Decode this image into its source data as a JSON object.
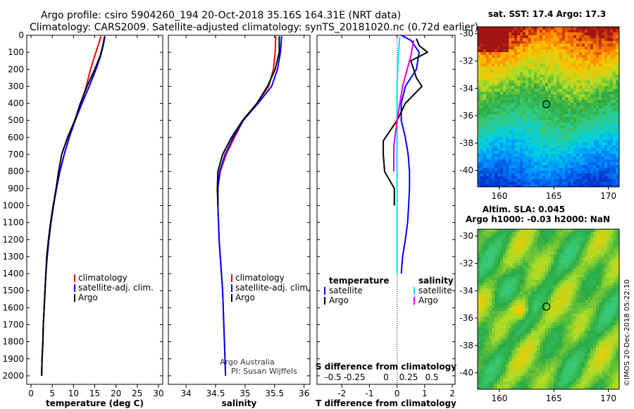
{
  "header": {
    "line1": "Argo profile: csiro 5904260_194 20-Oct-2018 35.16S 164.31E (NRT data)",
    "line2": "Climatology: CARS2009. Satellite-adjusted climatology: synTS_20181020.nc (0.72d earlier)"
  },
  "credits": {
    "org": "Argo Australia",
    "pi": "PI: Susan Wijffels",
    "stamp": "©IMOS 20-Dec-2018 05:22:10"
  },
  "colors": {
    "climatology": "#ff0000",
    "satellite": "#0000ff",
    "argo": "#000000",
    "salinity_satellite": "#00e5ff",
    "salinity_argo": "#e000e0"
  },
  "chart_data": [
    {
      "type": "line",
      "xlabel": "temperature (deg C)",
      "ylabel": "",
      "xlim": [
        -1,
        31
      ],
      "ylim": [
        2050,
        0
      ],
      "xticks": [
        0,
        5,
        10,
        15,
        20,
        25,
        30
      ],
      "yticks": [
        0,
        100,
        200,
        300,
        400,
        500,
        600,
        700,
        800,
        900,
        1000,
        1100,
        1200,
        1300,
        1400,
        1500,
        1600,
        1700,
        1800,
        1900,
        2000
      ],
      "legend": [
        "climatology",
        "satellite-adj. clim.",
        "Argo"
      ],
      "series": [
        {
          "name": "climatology",
          "color": "#ff0000",
          "points": [
            [
              16.5,
              5
            ],
            [
              15.8,
              60
            ],
            [
              15.0,
              120
            ],
            [
              14.0,
              200
            ],
            [
              13.0,
              300
            ],
            [
              11.8,
              400
            ],
            [
              10.3,
              500
            ],
            [
              9.0,
              600
            ],
            [
              7.8,
              700
            ],
            [
              6.8,
              800
            ],
            [
              6.0,
              900
            ],
            [
              5.3,
              1000
            ],
            [
              4.7,
              1100
            ],
            [
              4.2,
              1200
            ],
            [
              3.8,
              1300
            ],
            [
              3.5,
              1400
            ],
            [
              3.3,
              1500
            ],
            [
              3.1,
              1600
            ],
            [
              2.9,
              1700
            ],
            [
              2.8,
              1800
            ],
            [
              2.6,
              1900
            ],
            [
              2.5,
              2000
            ]
          ]
        },
        {
          "name": "satellite-adj. clim.",
          "color": "#0000ff",
          "points": [
            [
              17.4,
              5
            ],
            [
              17.0,
              60
            ],
            [
              16.4,
              120
            ],
            [
              15.3,
              200
            ],
            [
              13.7,
              300
            ],
            [
              12.0,
              400
            ],
            [
              10.4,
              500
            ],
            [
              9.0,
              600
            ],
            [
              7.8,
              700
            ],
            [
              6.8,
              800
            ],
            [
              6.0,
              900
            ],
            [
              5.3,
              1000
            ],
            [
              4.7,
              1100
            ],
            [
              4.2,
              1200
            ],
            [
              3.8,
              1300
            ],
            [
              3.5,
              1400
            ],
            [
              3.3,
              1500
            ],
            [
              3.1,
              1600
            ],
            [
              2.9,
              1700
            ],
            [
              2.8,
              1800
            ],
            [
              2.6,
              1900
            ],
            [
              2.5,
              2000
            ]
          ]
        },
        {
          "name": "Argo",
          "color": "#000000",
          "points": [
            [
              17.3,
              8
            ],
            [
              16.9,
              60
            ],
            [
              16.3,
              120
            ],
            [
              15.0,
              200
            ],
            [
              13.2,
              300
            ],
            [
              11.6,
              400
            ],
            [
              10.3,
              500
            ],
            [
              8.6,
              600
            ],
            [
              7.2,
              700
            ],
            [
              6.5,
              800
            ],
            [
              5.9,
              900
            ],
            [
              5.2,
              1000
            ],
            [
              4.6,
              1100
            ],
            [
              4.1,
              1200
            ],
            [
              3.7,
              1300
            ],
            [
              3.5,
              1400
            ],
            [
              3.3,
              1500
            ],
            [
              3.1,
              1600
            ],
            [
              2.9,
              1700
            ],
            [
              2.8,
              1800
            ],
            [
              2.6,
              1900
            ],
            [
              2.5,
              2000
            ]
          ]
        }
      ]
    },
    {
      "type": "line",
      "xlabel": "salinity",
      "xlim": [
        33.7,
        36.1
      ],
      "ylim": [
        2050,
        0
      ],
      "xticks": [
        34,
        34.5,
        35,
        35.5,
        36
      ],
      "legend": [
        "climatology",
        "satellite-adj. clim.",
        "Argo"
      ],
      "series": [
        {
          "name": "climatology",
          "color": "#ff0000",
          "points": [
            [
              35.52,
              5
            ],
            [
              35.51,
              100
            ],
            [
              35.48,
              200
            ],
            [
              35.4,
              300
            ],
            [
              35.2,
              400
            ],
            [
              34.97,
              500
            ],
            [
              34.82,
              600
            ],
            [
              34.68,
              700
            ],
            [
              34.58,
              800
            ],
            [
              34.54,
              900
            ],
            [
              34.54,
              1000
            ],
            [
              34.55,
              1100
            ],
            [
              34.56,
              1200
            ],
            [
              34.58,
              1300
            ],
            [
              34.6,
              1400
            ],
            [
              34.62,
              1500
            ],
            [
              34.63,
              1600
            ],
            [
              34.64,
              1700
            ],
            [
              34.65,
              1800
            ],
            [
              34.66,
              1900
            ],
            [
              34.67,
              2000
            ]
          ]
        },
        {
          "name": "satellite-adj. clim.",
          "color": "#0000ff",
          "points": [
            [
              35.62,
              5
            ],
            [
              35.6,
              100
            ],
            [
              35.55,
              200
            ],
            [
              35.45,
              300
            ],
            [
              35.22,
              400
            ],
            [
              34.97,
              500
            ],
            [
              34.8,
              600
            ],
            [
              34.66,
              700
            ],
            [
              34.57,
              800
            ],
            [
              34.54,
              900
            ],
            [
              34.54,
              1000
            ],
            [
              34.55,
              1100
            ],
            [
              34.56,
              1200
            ],
            [
              34.58,
              1300
            ],
            [
              34.6,
              1400
            ],
            [
              34.62,
              1500
            ],
            [
              34.63,
              1600
            ],
            [
              34.64,
              1700
            ],
            [
              34.65,
              1800
            ],
            [
              34.66,
              1900
            ],
            [
              34.67,
              2000
            ]
          ]
        },
        {
          "name": "Argo",
          "color": "#000000",
          "points": [
            [
              35.58,
              5
            ],
            [
              35.58,
              100
            ],
            [
              35.51,
              200
            ],
            [
              35.38,
              300
            ],
            [
              35.2,
              400
            ],
            [
              34.96,
              500
            ],
            [
              34.77,
              600
            ],
            [
              34.62,
              700
            ],
            [
              34.54,
              800
            ],
            [
              34.53,
              900
            ],
            [
              34.54,
              1000
            ]
          ]
        }
      ]
    },
    {
      "type": "line",
      "xlabel": "T difference from climatology",
      "xlabel_top": "S difference from climatology",
      "xlim": [
        -2.9,
        2.1
      ],
      "ylim": [
        2050,
        0
      ],
      "xticks": [
        -2,
        -1,
        0,
        1,
        2
      ],
      "xtick_labels": [
        "-2",
        "-1",
        "0",
        "1",
        "2"
      ],
      "sticks": [
        -0.5,
        -0.25,
        0,
        0.25,
        0.5
      ],
      "stick_labels": [
        "-0.5",
        "-0.25",
        "0",
        "0.25",
        "0.5"
      ],
      "legend_left_title": "temperature",
      "legend_right_title": "salinity",
      "legend_left": [
        "satellite",
        "Argo"
      ],
      "legend_right": [
        "satellite",
        "Argo"
      ],
      "series": [
        {
          "name": "temperature satellite",
          "color": "#0000ff",
          "points": [
            [
              0.15,
              0
            ],
            [
              0.5,
              30
            ],
            [
              0.8,
              100
            ],
            [
              0.7,
              200
            ],
            [
              0.3,
              300
            ],
            [
              0.15,
              400
            ],
            [
              0.15,
              500
            ],
            [
              0.3,
              600
            ],
            [
              0.4,
              700
            ],
            [
              0.45,
              800
            ],
            [
              0.45,
              900
            ],
            [
              0.42,
              1000
            ],
            [
              0.38,
              1100
            ],
            [
              0.3,
              1200
            ],
            [
              0.2,
              1300
            ],
            [
              0.15,
              1400
            ]
          ]
        },
        {
          "name": "temperature Argo",
          "color": "#000000",
          "points": [
            [
              0.7,
              20
            ],
            [
              0.8,
              60
            ],
            [
              1.1,
              100
            ],
            [
              0.5,
              150
            ],
            [
              0.7,
              250
            ],
            [
              0.9,
              300
            ],
            [
              0.3,
              400
            ],
            [
              0.0,
              500
            ],
            [
              -0.5,
              620
            ],
            [
              -0.5,
              700
            ],
            [
              -0.45,
              800
            ],
            [
              -0.1,
              900
            ],
            [
              -0.1,
              1000
            ]
          ]
        },
        {
          "name": "salinity satellite",
          "color": "#00e5ff",
          "points": [
            [
              0.1,
              10
            ],
            [
              0.05,
              100
            ],
            [
              0.0,
              300
            ],
            [
              0.0,
              600
            ],
            [
              0.0,
              900
            ],
            [
              0.0,
              1200
            ],
            [
              0.0,
              1400
            ]
          ]
        },
        {
          "name": "salinity Argo",
          "color": "#e000e0",
          "points": [
            [
              0.6,
              30
            ],
            [
              0.5,
              120
            ],
            [
              0.2,
              300
            ],
            [
              0.0,
              500
            ],
            [
              -0.12,
              650
            ],
            [
              -0.12,
              800
            ]
          ]
        }
      ]
    }
  ],
  "maps": [
    {
      "title": "sat. SST: 17.4 Argo: 17.3",
      "kind": "sst",
      "xticks": [
        160,
        165,
        170
      ],
      "yticks": [
        -30,
        -32,
        -34,
        -36,
        -38,
        -40
      ],
      "marker": [
        164.31,
        -35.16
      ]
    },
    {
      "title1": "Altim. SLA: 0.045",
      "title2": "Argo h1000: -0.03 h2000: NaN",
      "kind": "sla",
      "xticks": [
        160,
        165,
        170
      ],
      "yticks": [
        -30,
        -32,
        -34,
        -36,
        -38,
        -40
      ],
      "marker": [
        164.31,
        -35.16
      ]
    }
  ]
}
